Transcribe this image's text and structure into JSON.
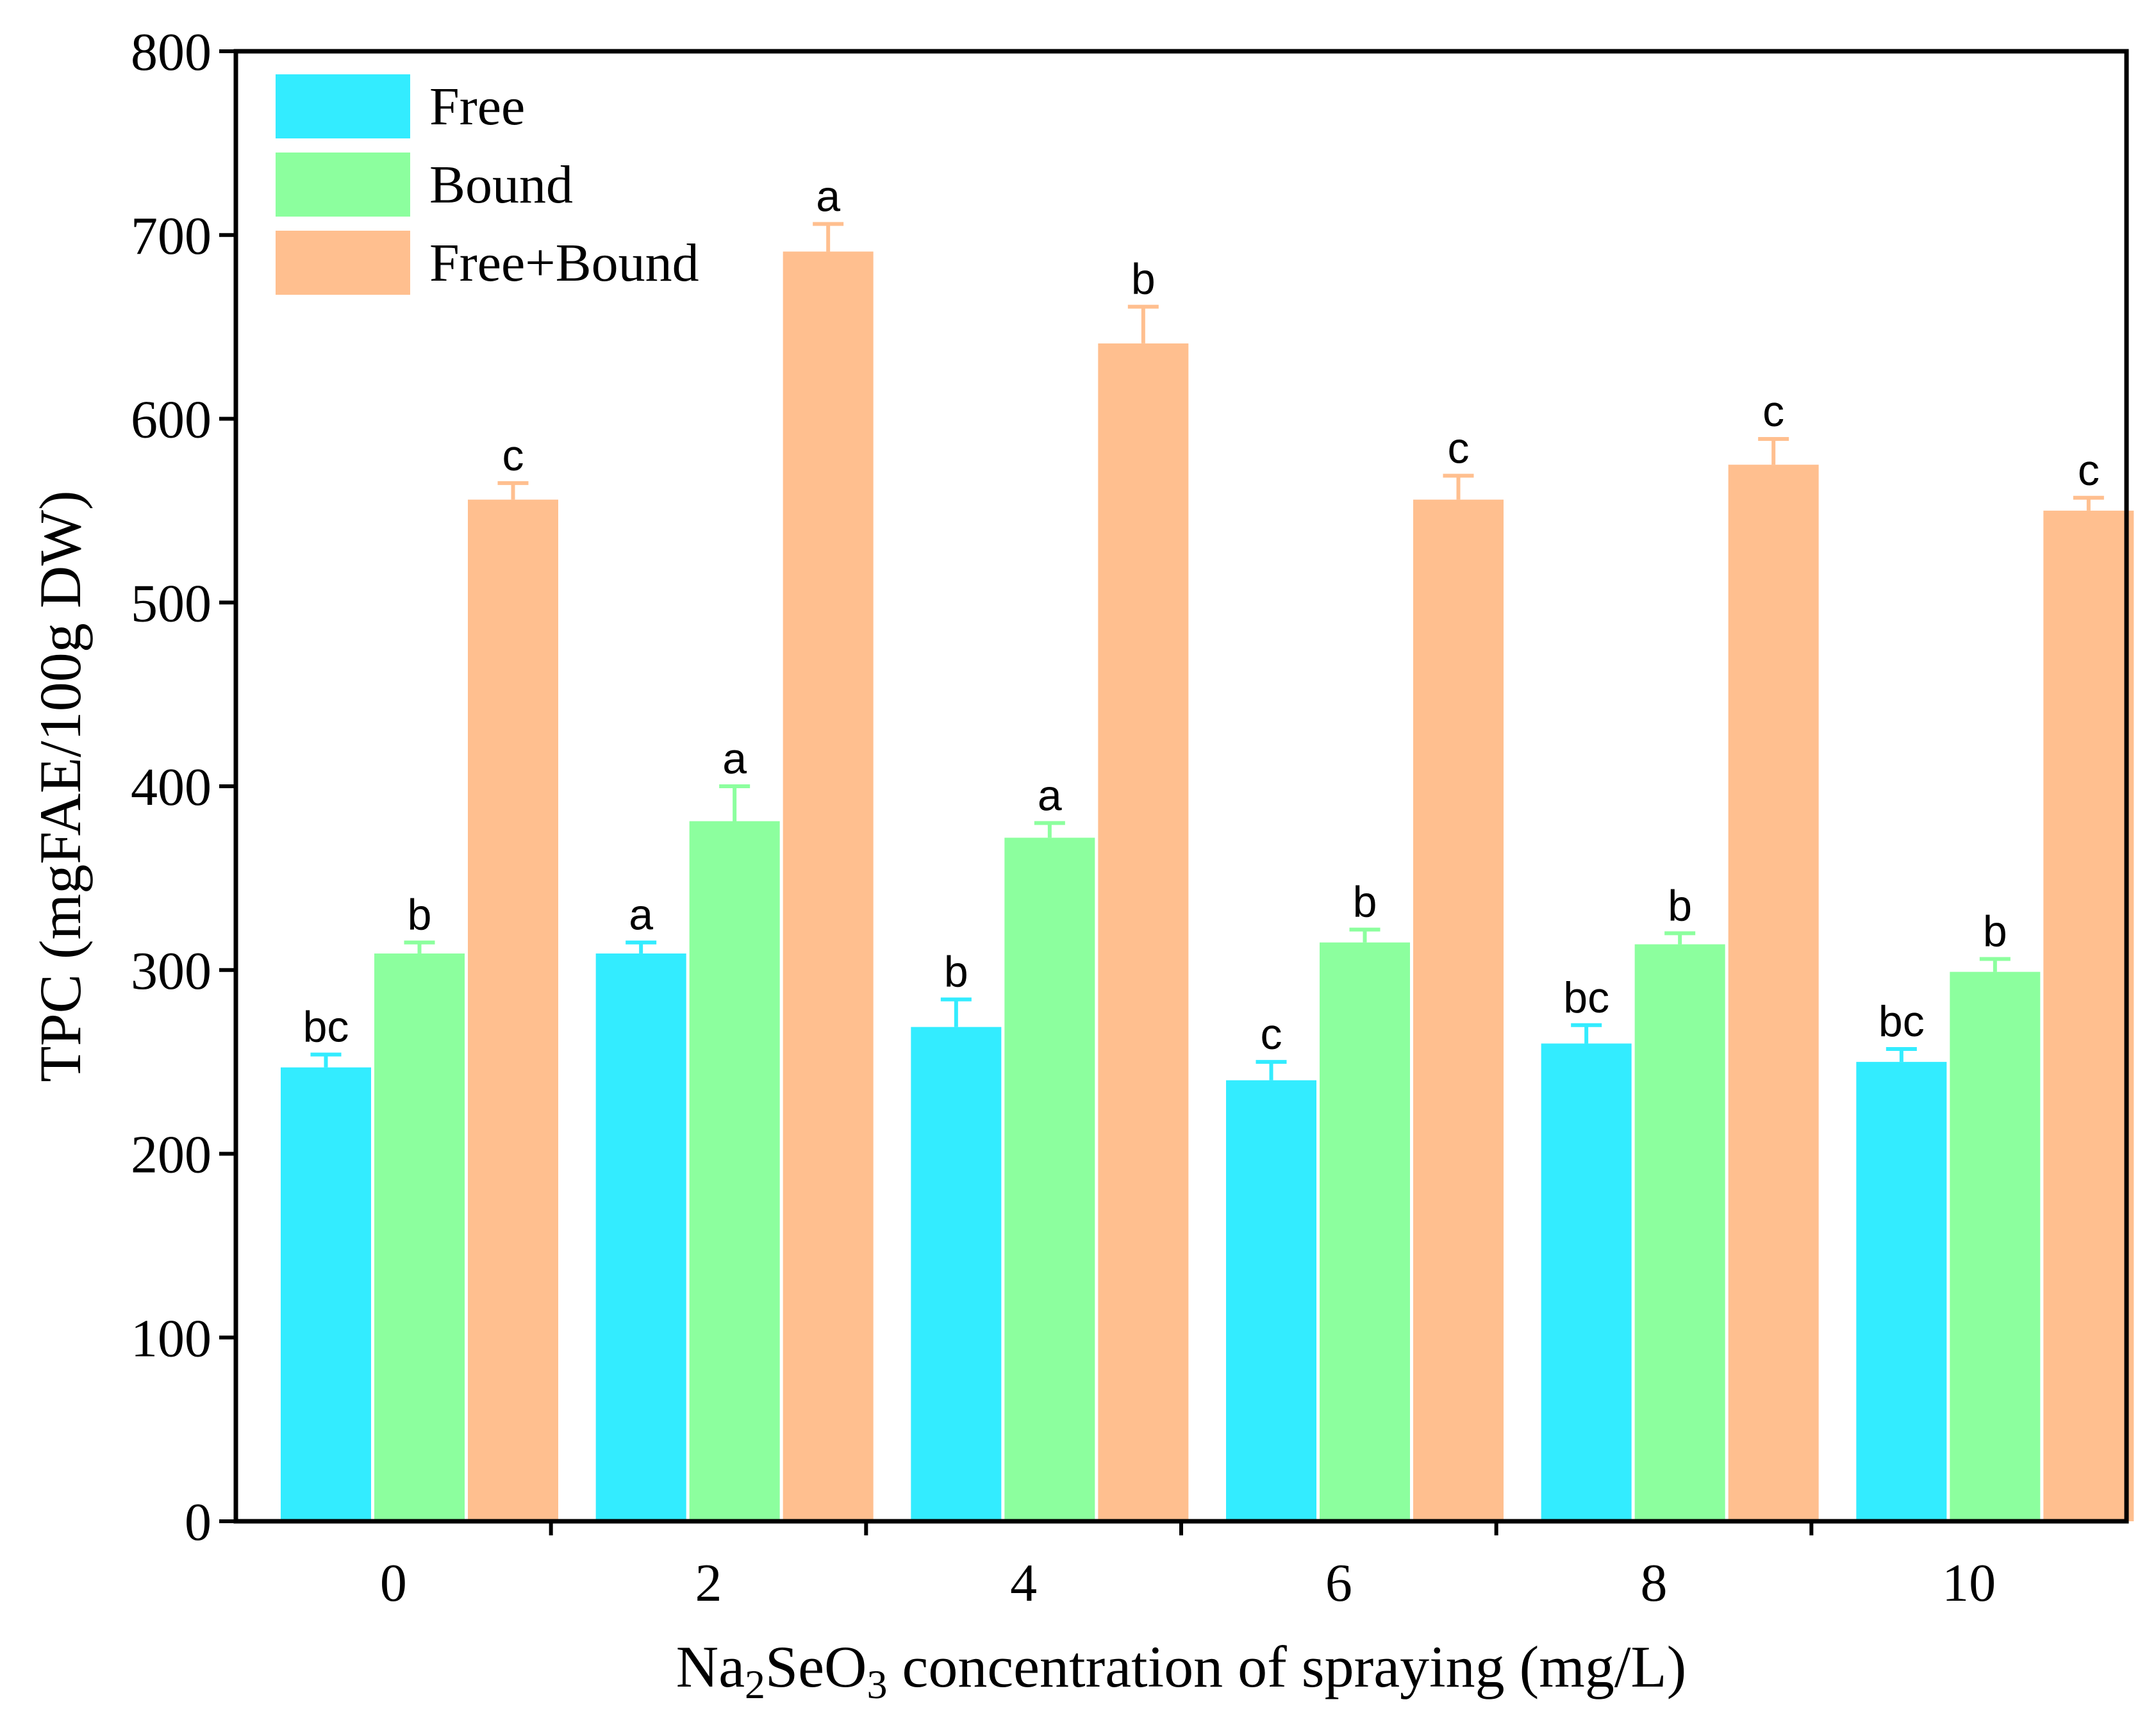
{
  "chart_data": {
    "type": "bar",
    "title": "",
    "xlabel": {
      "prefix": "Na",
      "sub1": "2",
      "mid": "SeO",
      "sub2": "3",
      "suffix": " concentration of spraying (mg/L)"
    },
    "ylabel": "TPC (mgFAE/100g DW)",
    "ylim": [
      0,
      800
    ],
    "yticks": [
      "0",
      "100",
      "200",
      "300",
      "400",
      "500",
      "600",
      "700",
      "800"
    ],
    "categories": [
      "0",
      "2",
      "4",
      "6",
      "8",
      "10"
    ],
    "legend_position": "top-left",
    "series": [
      {
        "name": "Free",
        "color": "#33ecff",
        "values": [
          247,
          309,
          269,
          240,
          260,
          250
        ],
        "errors": [
          7,
          6,
          15,
          10,
          10,
          7
        ],
        "letters": [
          "bc",
          "a",
          "b",
          "c",
          "bc",
          "bc"
        ]
      },
      {
        "name": "Bound",
        "color": "#8cff9e",
        "values": [
          309,
          381,
          372,
          315,
          314,
          299
        ],
        "errors": [
          6,
          19,
          8,
          7,
          6,
          7
        ],
        "letters": [
          "b",
          "a",
          "a",
          "b",
          "b",
          "b"
        ]
      },
      {
        "name": "Free+Bound",
        "color": "#ffbf8f",
        "values": [
          556,
          691,
          641,
          556,
          575,
          550
        ],
        "errors": [
          9,
          15,
          20,
          13,
          14,
          7
        ],
        "letters": [
          "c",
          "a",
          "b",
          "c",
          "c",
          "c"
        ]
      }
    ]
  }
}
